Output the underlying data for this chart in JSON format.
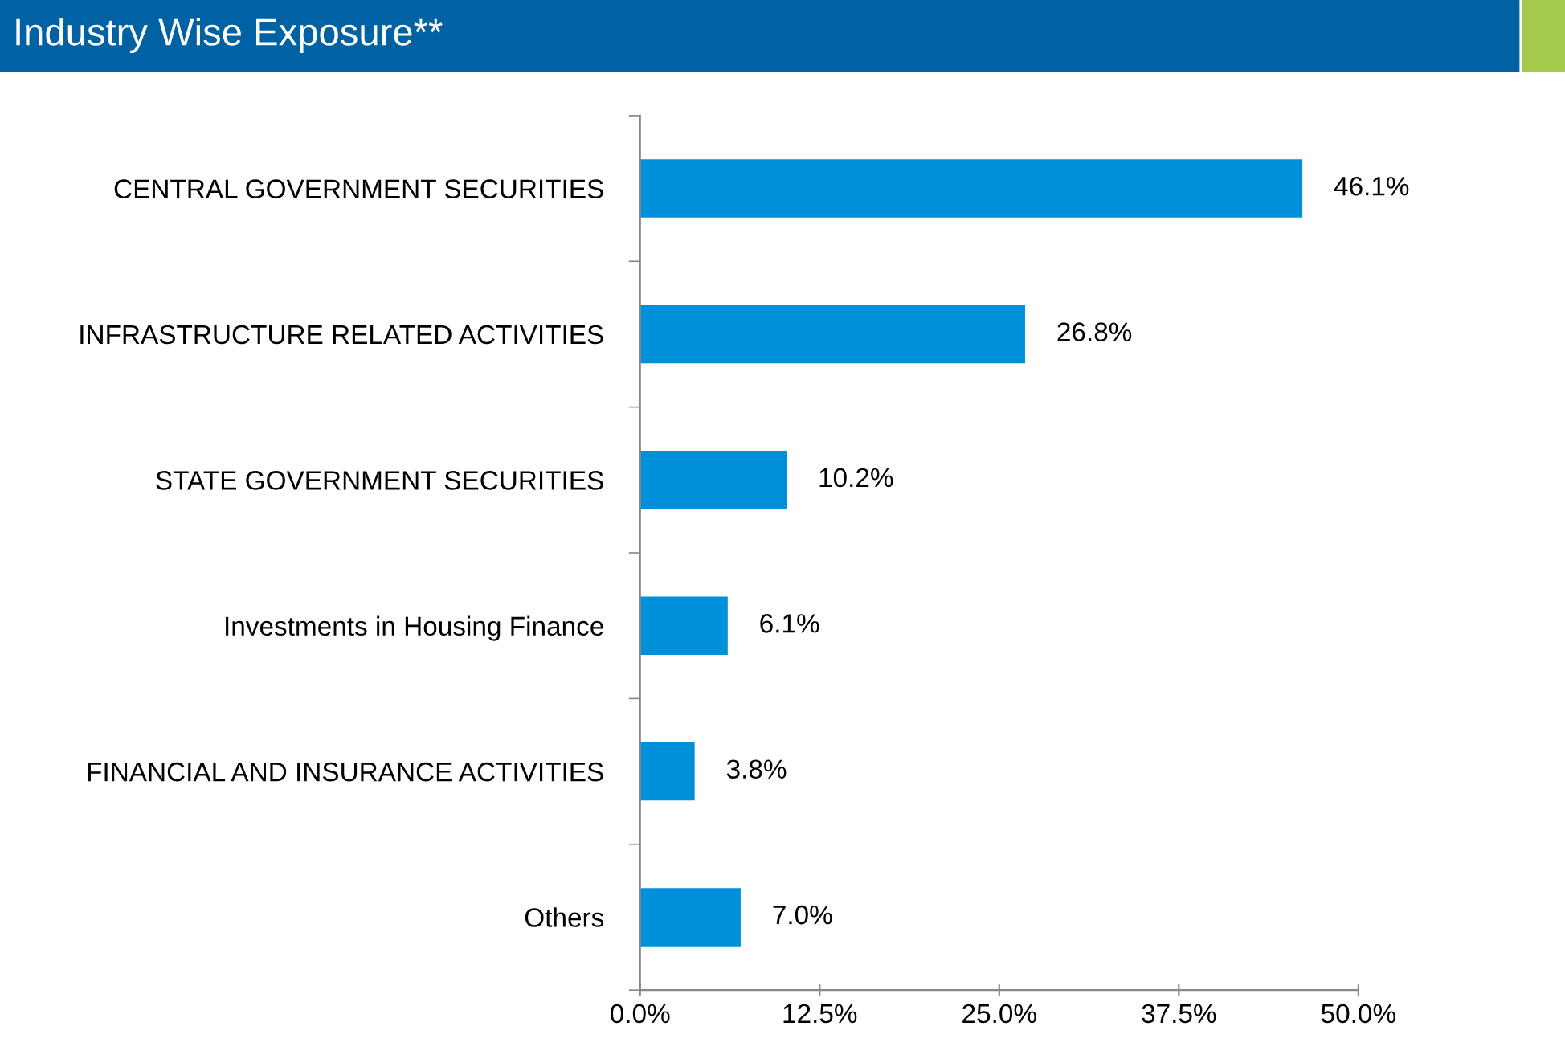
{
  "chart_data": {
    "type": "bar",
    "orientation": "horizontal",
    "title": "Industry Wise Exposure**",
    "categories": [
      "CENTRAL GOVERNMENT SECURITIES",
      "INFRASTRUCTURE RELATED ACTIVITIES",
      "STATE GOVERNMENT SECURITIES",
      "Investments in Housing Finance",
      "FINANCIAL AND INSURANCE ACTIVITIES",
      "Others"
    ],
    "values": [
      46.1,
      26.8,
      10.2,
      6.1,
      3.8,
      7.0
    ],
    "value_labels": [
      "46.1%",
      "26.8%",
      "10.2%",
      "6.1%",
      "3.8%",
      "7.0%"
    ],
    "color": "#0090da",
    "xlim": [
      0,
      50
    ],
    "xticks": [
      {
        "value": 0,
        "label": "0.0%"
      },
      {
        "value": 12.5,
        "label": "12.5%"
      },
      {
        "value": 25,
        "label": "25.0%"
      },
      {
        "value": 37.5,
        "label": "37.5%"
      },
      {
        "value": 50,
        "label": "50.0%"
      }
    ],
    "grid": false,
    "legend": false
  }
}
